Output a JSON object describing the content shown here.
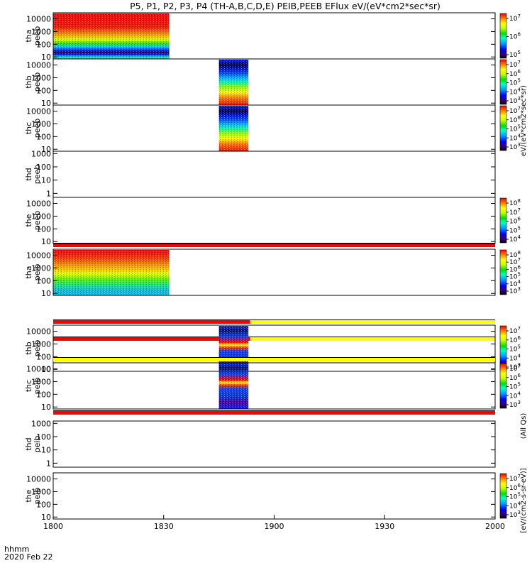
{
  "chart_data": {
    "type": "heatmap",
    "title": "P5, P1, P2, P3, P4 (TH-A,B,C,D,E) PEIB,PEEB EFlux eV/(eV*cm2*sec*sr)",
    "time_axis": {
      "ticks": [
        "1800",
        "1830",
        "1900",
        "1930",
        "2000"
      ],
      "range_minutes": [
        0,
        120
      ],
      "label_line1": "hhmm",
      "label_line2": "2020 Feb 22"
    },
    "colorbar_labels": {
      "peeb": "eV/(eV*cm2*sec*sr)",
      "peib": "[eV/(cm2-s-sr-eV)]",
      "all": "(All Qs)"
    },
    "panels": [
      {
        "probe": "tha",
        "label": "tha",
        "product": "peeb",
        "yticks": [
          "10",
          "100",
          "1000",
          "10000"
        ],
        "ymin": 7,
        "ymax": 30000,
        "data": [
          {
            "t0": 0,
            "t1": 31.5,
            "style": "peeb_a"
          }
        ],
        "colorbar": [
          "10^5",
          "10^6",
          "10^7"
        ]
      },
      {
        "probe": "thb",
        "label": "thb",
        "product": "peeb",
        "yticks": [
          "10",
          "100",
          "1000",
          "10000"
        ],
        "ymin": 7,
        "ymax": 30000,
        "data": [
          {
            "t0": 45,
            "t1": 53,
            "style": "peeb_burst"
          }
        ],
        "colorbar": [
          "10^3",
          "10^4",
          "10^5",
          "10^6",
          "10^7"
        ]
      },
      {
        "probe": "thc",
        "label": "thc",
        "product": "peeb",
        "yticks": [
          "10",
          "100",
          "1000",
          "10000"
        ],
        "ymin": 7,
        "ymax": 30000,
        "data": [
          {
            "t0": 45,
            "t1": 53,
            "style": "peeb_burst"
          }
        ],
        "colorbar": [
          "10^3",
          "10^4",
          "10^5",
          "10^6",
          "10^7"
        ]
      },
      {
        "probe": "thd",
        "label": "thd",
        "product": "peeb",
        "yticks": [
          "1",
          "10",
          "100",
          "1000"
        ],
        "ymin": 0.5,
        "ymax": 1500,
        "data": [],
        "colorbar": []
      },
      {
        "probe": "the",
        "label": "the",
        "product": "peeb",
        "yticks": [
          "10",
          "100",
          "1000",
          "10000"
        ],
        "ymin": 7,
        "ymax": 30000,
        "data": [],
        "colorbar": [
          "10^4",
          "10^5",
          "10^6",
          "10^7",
          "10^8"
        ],
        "mode_bar": [
          {
            "t0": 0,
            "t1": 120,
            "color": "#ff0000"
          }
        ]
      },
      {
        "probe": "tha",
        "label": "tha",
        "product": "peib",
        "yticks": [
          "10",
          "100",
          "1000",
          "10000"
        ],
        "ymin": 7,
        "ymax": 30000,
        "data": [
          {
            "t0": 0,
            "t1": 31.5,
            "style": "peib_a"
          }
        ],
        "colorbar": [
          "10^3",
          "10^4",
          "10^5",
          "10^6",
          "10^7",
          "10^8"
        ],
        "mode_bar": [
          {
            "t0": 0,
            "t1": 53.5,
            "color": "#ff0000"
          },
          {
            "t0": 53.5,
            "t1": 120,
            "color": "#ffff00"
          }
        ]
      },
      {
        "probe": "thb",
        "label": "thb",
        "product": "peib",
        "yticks": [
          "10",
          "100",
          "1000",
          "10000"
        ],
        "ymin": 7,
        "ymax": 30000,
        "data": [
          {
            "t0": 45,
            "t1": 53,
            "style": "peib_burst"
          }
        ],
        "colorbar": [
          "10^3",
          "10^4",
          "10^5",
          "10^6",
          "10^7"
        ],
        "mode_bar": [
          {
            "t0": 0,
            "t1": 53.5,
            "color": "#ff0000"
          },
          {
            "t0": 53.5,
            "t1": 120,
            "color": "#ffff00"
          }
        ]
      },
      {
        "probe": "thc",
        "label": "thc",
        "product": "peib",
        "yticks": [
          "10",
          "100",
          "1000",
          "10000"
        ],
        "ymin": 7,
        "ymax": 30000,
        "data": [
          {
            "t0": 45,
            "t1": 53,
            "style": "peib_burst"
          }
        ],
        "colorbar": [
          "10^3",
          "10^4",
          "10^5",
          "10^6",
          "10^7"
        ],
        "mode_bar": [
          {
            "t0": 0,
            "t1": 120,
            "color": "#ffff00"
          }
        ]
      },
      {
        "probe": "thd",
        "label": "thd",
        "product": "peib",
        "yticks": [
          "1",
          "10",
          "100",
          "1000"
        ],
        "ymin": 0.5,
        "ymax": 1500,
        "data": [],
        "colorbar": [],
        "mode_bar": [
          {
            "t0": 0,
            "t1": 120,
            "color": "#ff0000"
          }
        ]
      },
      {
        "probe": "the",
        "label": "the",
        "product": "peib",
        "yticks": [
          "10",
          "100",
          "1000",
          "10000"
        ],
        "ymin": 7,
        "ymax": 30000,
        "data": [],
        "colorbar": [
          "10^3",
          "10^4",
          "10^5",
          "10^6",
          "10^7"
        ]
      }
    ]
  }
}
